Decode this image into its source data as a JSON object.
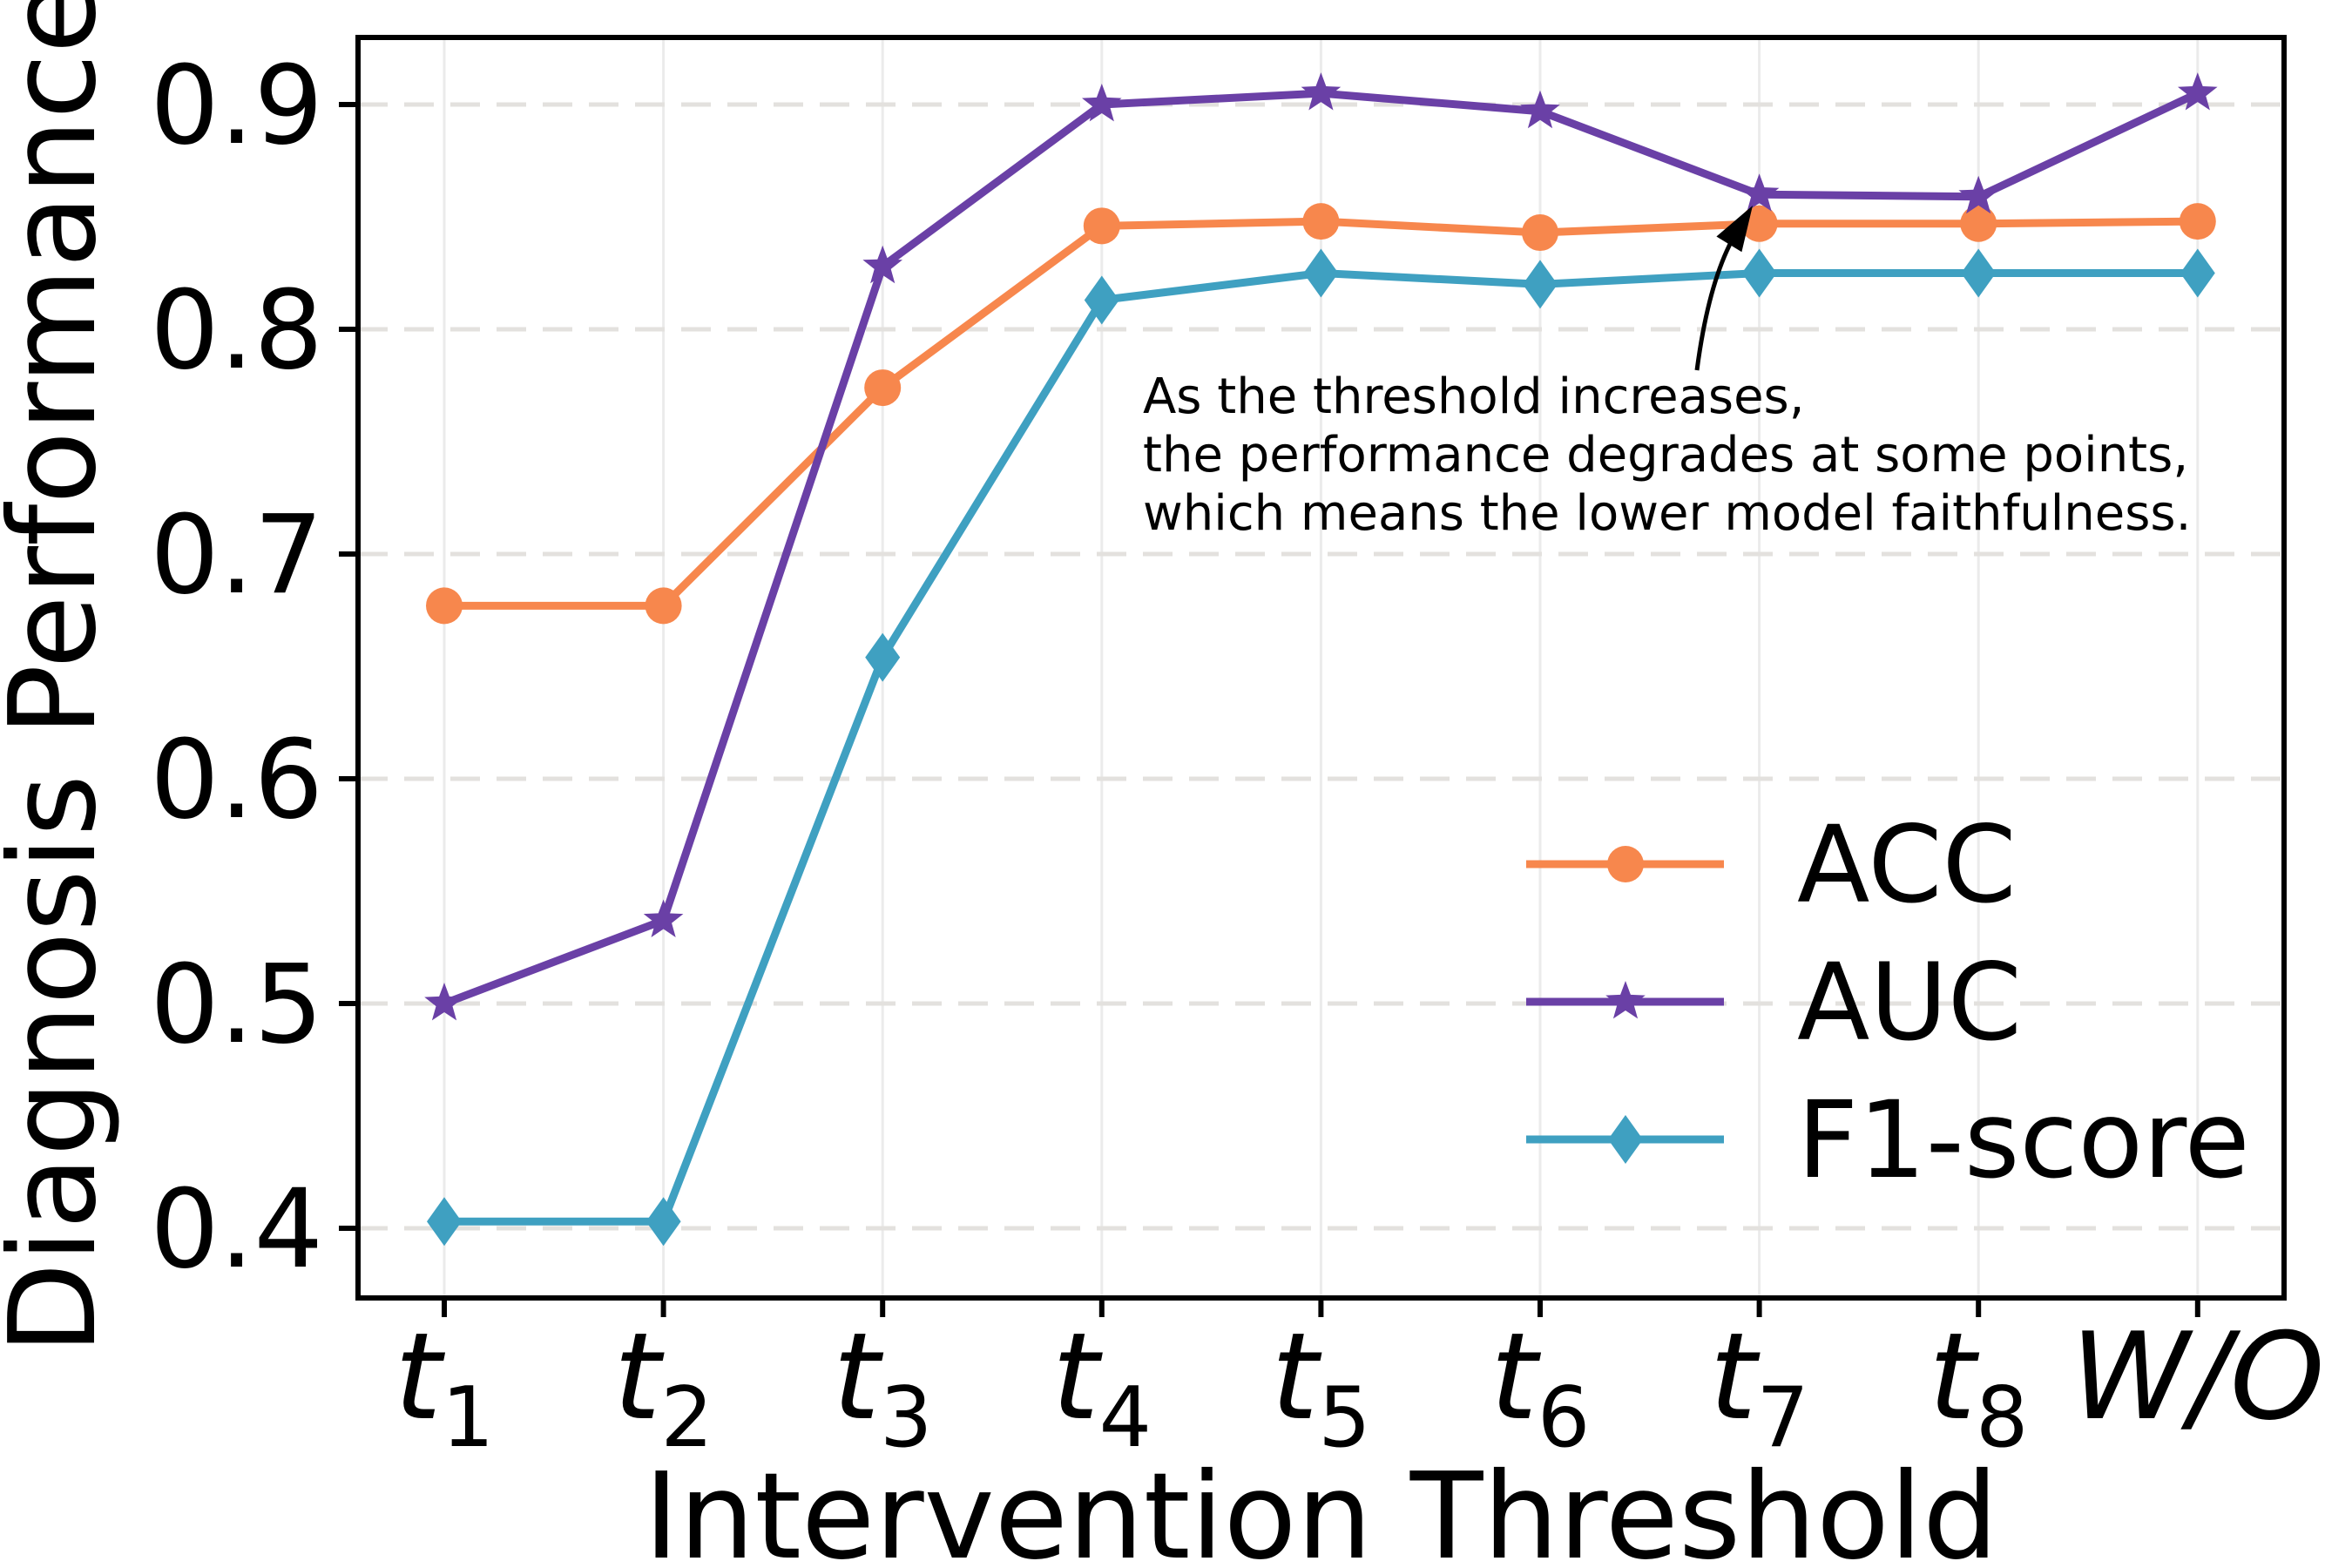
{
  "chart_data": {
    "type": "line",
    "title": "",
    "xlabel": "Intervention Threshold",
    "ylabel": "Diagnosis Performance",
    "x_tick_labels": [
      {
        "base": "t",
        "sub": "1"
      },
      {
        "base": "t",
        "sub": "2"
      },
      {
        "base": "t",
        "sub": "3"
      },
      {
        "base": "t",
        "sub": "4"
      },
      {
        "base": "t",
        "sub": "5"
      },
      {
        "base": "t",
        "sub": "6"
      },
      {
        "base": "t",
        "sub": "7"
      },
      {
        "base": "t",
        "sub": "8"
      },
      {
        "base": "W/O",
        "sub": ""
      }
    ],
    "categories": [
      "t1",
      "t2",
      "t3",
      "t4",
      "t5",
      "t6",
      "t7",
      "t8",
      "W/O"
    ],
    "y_ticks": [
      0.4,
      0.5,
      0.6,
      0.7,
      0.8,
      0.9
    ],
    "ylim": [
      0.369,
      0.93
    ],
    "grid": true,
    "legend_position": "center right",
    "series": [
      {
        "name": "ACC",
        "marker": "circle",
        "color": "#F7874D",
        "values": [
          0.677,
          0.677,
          0.774,
          0.846,
          0.848,
          0.843,
          0.847,
          0.847,
          0.848
        ]
      },
      {
        "name": "AUC",
        "marker": "star",
        "color": "#6A40A6",
        "values": [
          0.5,
          0.537,
          0.828,
          0.9,
          0.905,
          0.897,
          0.86,
          0.859,
          0.905
        ]
      },
      {
        "name": "F1-score",
        "marker": "diamond",
        "color": "#3FA0C1",
        "values": [
          0.403,
          0.403,
          0.654,
          0.813,
          0.825,
          0.82,
          0.825,
          0.825,
          0.825
        ]
      }
    ],
    "annotation": {
      "line1": "As the threshold increases,",
      "line2": "the performance degrades at some points,",
      "line3": "which means the lower model faithfulness.",
      "arrow_points_to": "performance dip at t7"
    },
    "colors": {
      "acc": "#F7874D",
      "auc": "#6A40A6",
      "f1": "#3FA0C1",
      "grid_dashed": "#E3E1DE",
      "grid_vertical": "#EBEBEB",
      "axis": "#000000"
    }
  }
}
